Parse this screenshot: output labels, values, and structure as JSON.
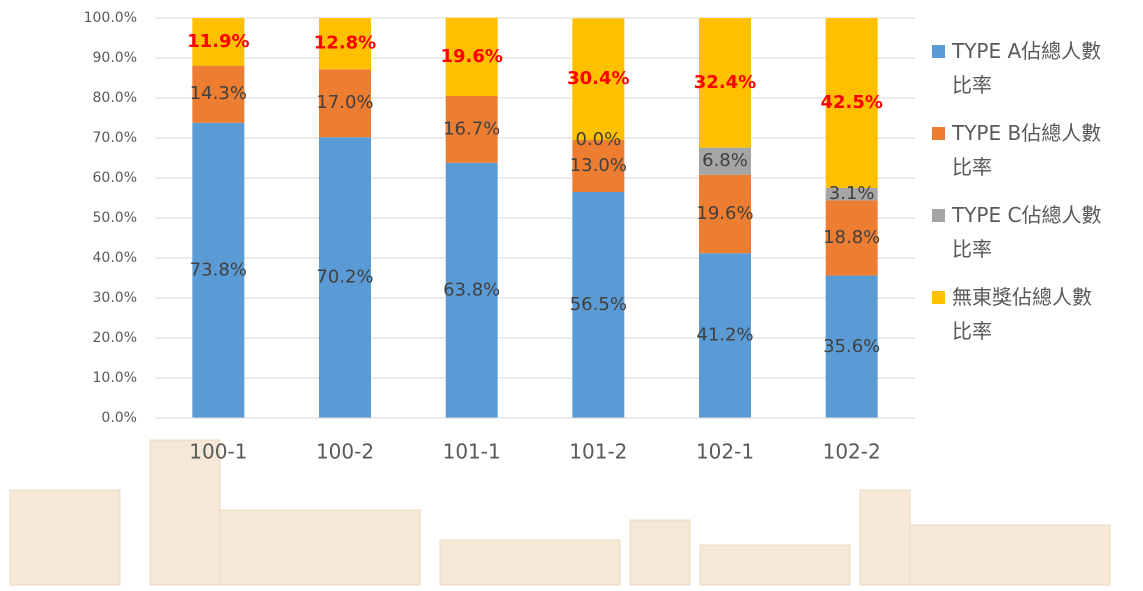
{
  "chart_data": {
    "type": "stacked_bar",
    "categories": [
      "100-1",
      "100-2",
      "101-1",
      "101-2",
      "102-1",
      "102-2"
    ],
    "series": [
      {
        "name": "TYPE A佔總人數\n比率",
        "color": "#5b9bd5",
        "label_color": "#404040",
        "values": [
          73.8,
          70.2,
          63.8,
          56.5,
          41.2,
          35.6
        ],
        "value_labels": [
          "73.8%",
          "70.2%",
          "63.8%",
          "56.5%",
          "41.2%",
          "35.6%"
        ]
      },
      {
        "name": "TYPE B佔總人數\n比率",
        "color": "#ed7d31",
        "label_color": "#404040",
        "values": [
          14.3,
          17.0,
          16.7,
          13.0,
          19.6,
          18.8
        ],
        "value_labels": [
          "14.3%",
          "17.0%",
          "16.7%",
          "13.0%",
          "19.6%",
          "18.8%"
        ]
      },
      {
        "name": "TYPE C佔總人數\n比率",
        "color": "#a5a5a5",
        "label_color": "#404040",
        "values": [
          null,
          null,
          null,
          0.0,
          6.8,
          3.1
        ],
        "value_labels": [
          null,
          null,
          null,
          "0.0%",
          "6.8%",
          "3.1%"
        ]
      },
      {
        "name": "無東獎佔總人數\n比率",
        "color": "#ffc000",
        "label_color": "#ff0000",
        "label_bold": true,
        "values": [
          11.9,
          12.8,
          19.6,
          30.4,
          32.4,
          42.5
        ],
        "value_labels": [
          "11.9%",
          "12.8%",
          "19.6%",
          "30.4%",
          "32.4%",
          "42.5%"
        ]
      }
    ],
    "ylim": [
      0,
      100
    ],
    "yticks": [
      {
        "value": 0,
        "label": "0.0%"
      },
      {
        "value": 10,
        "label": "10.0%"
      },
      {
        "value": 20,
        "label": "20.0%"
      },
      {
        "value": 30,
        "label": "30.0%"
      },
      {
        "value": 40,
        "label": "40.0%"
      },
      {
        "value": 50,
        "label": "50.0%"
      },
      {
        "value": 60,
        "label": "60.0%"
      },
      {
        "value": 70,
        "label": "70.0%"
      },
      {
        "value": 80,
        "label": "80.0%"
      },
      {
        "value": 90,
        "label": "90.0%"
      },
      {
        "value": 100,
        "label": "100.0%"
      }
    ],
    "grid": true,
    "legend": "right"
  }
}
